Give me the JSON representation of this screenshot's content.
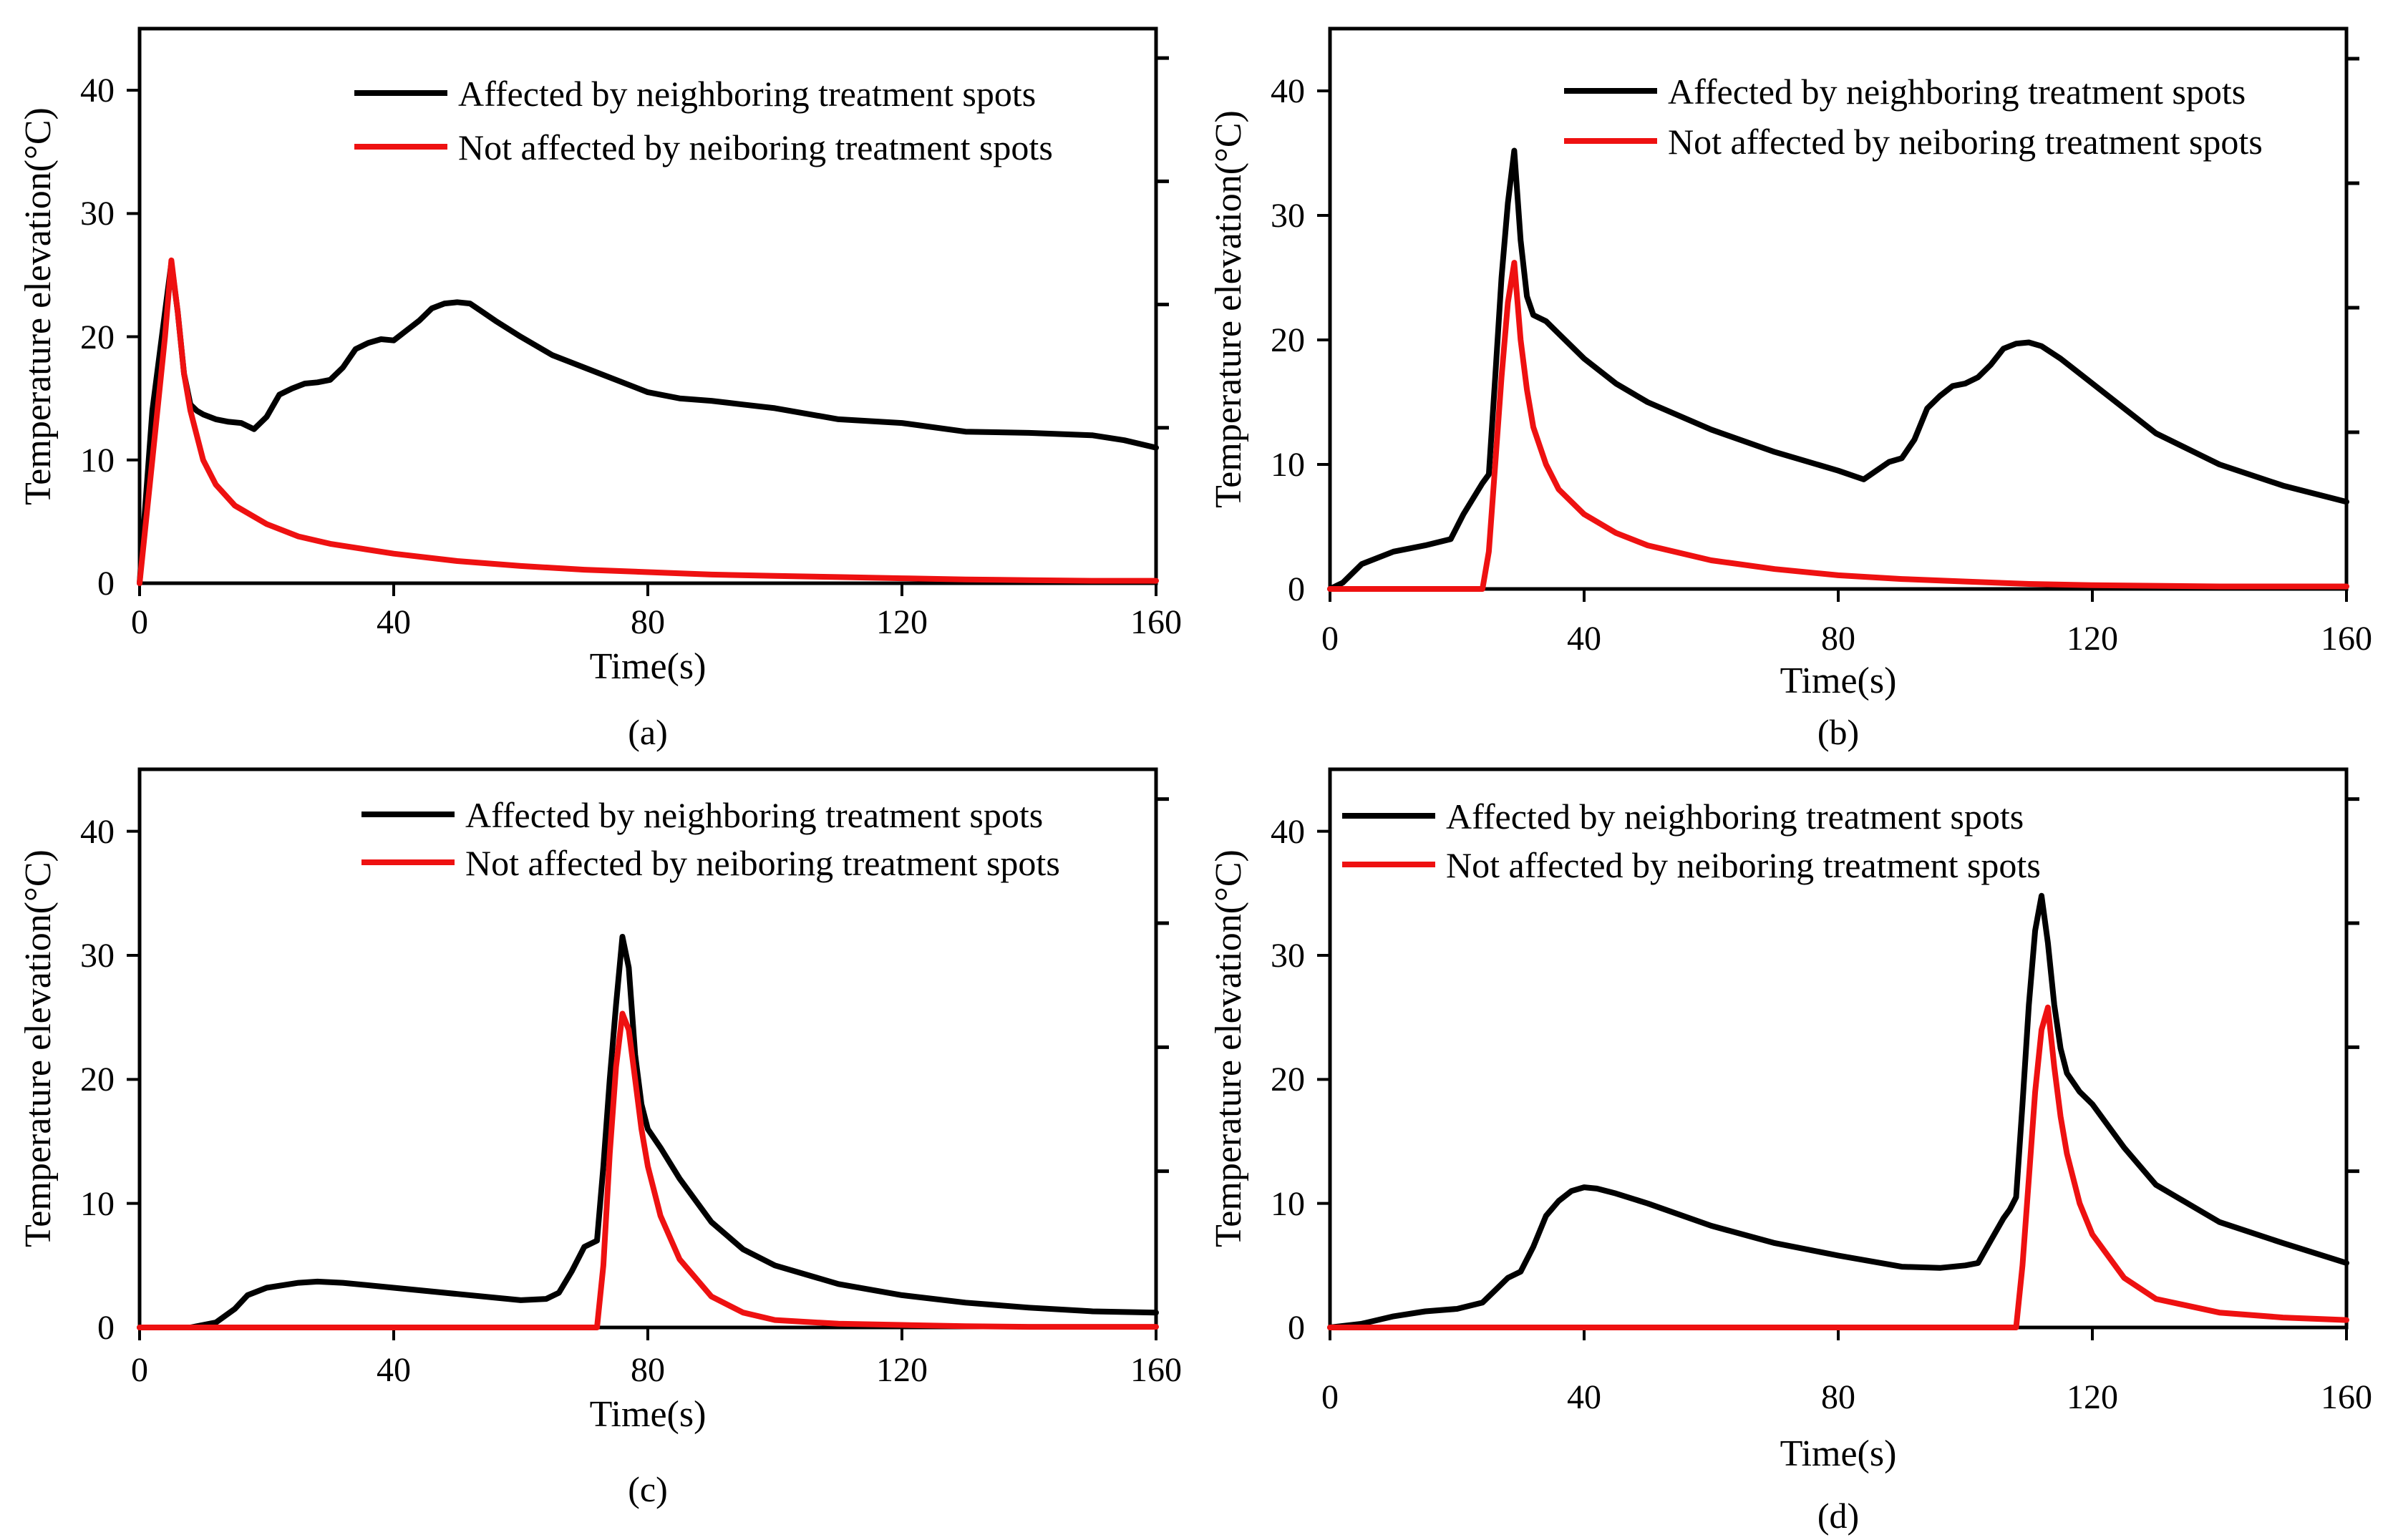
{
  "figure": {
    "legend": {
      "affected": "Affected by neighboring treatment spots",
      "not_affected": "Not affected by neiboring treatment spots"
    },
    "colors": {
      "affected": "#000000",
      "not_affected": "#ee1111"
    }
  },
  "chart_data": [
    {
      "type": "line",
      "panel_label": "(a)",
      "xlabel": "Time(s)",
      "ylabel": "Temperature elevation(°C)",
      "xlim": [
        0,
        160
      ],
      "ylim": [
        0,
        45
      ],
      "xticks": [
        0,
        40,
        80,
        120,
        160
      ],
      "yticks": [
        0,
        10,
        20,
        30,
        40
      ],
      "series": [
        {
          "name": "Affected by neighboring treatment spots",
          "x": [
            0,
            2,
            4,
            5,
            6,
            7,
            8,
            9,
            10,
            12,
            14,
            16,
            18,
            20,
            22,
            24,
            26,
            28,
            30,
            32,
            34,
            36,
            38,
            40,
            42,
            44,
            46,
            48,
            50,
            52,
            54,
            56,
            60,
            65,
            70,
            80,
            85,
            90,
            95,
            100,
            110,
            120,
            130,
            140,
            150,
            155,
            160
          ],
          "y": [
            0,
            14,
            22,
            26,
            22,
            17,
            14.5,
            14,
            13.7,
            13.3,
            13.1,
            13,
            12.5,
            13.5,
            15.3,
            15.8,
            16.2,
            16.3,
            16.5,
            17.5,
            19,
            19.5,
            19.8,
            19.7,
            20.5,
            21.3,
            22.3,
            22.7,
            22.8,
            22.7,
            22,
            21.3,
            20,
            18.5,
            17.5,
            15.5,
            15,
            14.8,
            14.5,
            14.2,
            13.3,
            13,
            12.3,
            12.2,
            12,
            11.6,
            11
          ]
        },
        {
          "name": "Not affected by neiboring treatment spots",
          "x": [
            0,
            2,
            4,
            5,
            6,
            7,
            8,
            10,
            12,
            15,
            20,
            25,
            30,
            40,
            50,
            60,
            70,
            80,
            90,
            100,
            110,
            120,
            130,
            140,
            150,
            160
          ],
          "y": [
            0,
            10,
            20,
            26.2,
            22,
            17,
            14,
            10,
            8,
            6.3,
            4.8,
            3.8,
            3.2,
            2.4,
            1.8,
            1.4,
            1.1,
            0.9,
            0.7,
            0.6,
            0.5,
            0.4,
            0.3,
            0.25,
            0.2,
            0.2
          ]
        }
      ]
    },
    {
      "type": "line",
      "panel_label": "(b)",
      "xlabel": "Time(s)",
      "ylabel": "Temperature elevation(°C)",
      "xlim": [
        0,
        160
      ],
      "ylim": [
        0,
        45
      ],
      "xticks": [
        0,
        40,
        80,
        120,
        160
      ],
      "yticks": [
        0,
        10,
        20,
        30,
        40
      ],
      "series": [
        {
          "name": "Affected by neighboring treatment spots",
          "x": [
            0,
            2,
            5,
            10,
            15,
            19,
            21,
            24,
            25,
            26,
            27,
            28,
            29,
            30,
            31,
            32,
            34,
            36,
            40,
            45,
            50,
            60,
            70,
            80,
            84,
            86,
            88,
            90,
            92,
            94,
            96,
            98,
            100,
            102,
            104,
            106,
            108,
            110,
            112,
            115,
            120,
            130,
            140,
            150,
            160
          ],
          "y": [
            0,
            0.5,
            2,
            3,
            3.5,
            4,
            6,
            8.5,
            9.2,
            17,
            25,
            31,
            35.2,
            28,
            23.5,
            22,
            21.5,
            20.5,
            18.5,
            16.5,
            15,
            12.8,
            11,
            9.5,
            8.8,
            9.5,
            10.2,
            10.5,
            12,
            14.5,
            15.5,
            16.3,
            16.5,
            17,
            18,
            19.3,
            19.7,
            19.8,
            19.5,
            18.5,
            16.5,
            12.5,
            10,
            8.3,
            7
          ]
        },
        {
          "name": "Not affected by neiboring treatment spots",
          "x": [
            0,
            24,
            25,
            26,
            27,
            28,
            29,
            30,
            31,
            32,
            34,
            36,
            40,
            45,
            50,
            60,
            70,
            80,
            90,
            100,
            110,
            120,
            130,
            140,
            150,
            160
          ],
          "y": [
            0,
            0,
            3,
            10,
            17,
            23,
            26.2,
            20,
            16,
            13,
            10,
            8,
            6,
            4.5,
            3.5,
            2.3,
            1.6,
            1.1,
            0.8,
            0.6,
            0.4,
            0.3,
            0.25,
            0.2,
            0.2,
            0.2
          ]
        }
      ]
    },
    {
      "type": "line",
      "panel_label": "(c)",
      "xlabel": "Time(s)",
      "ylabel": "Temperature elevation(°C)",
      "xlim": [
        0,
        160
      ],
      "ylim": [
        0,
        45
      ],
      "xticks": [
        0,
        40,
        80,
        120,
        160
      ],
      "yticks": [
        0,
        10,
        20,
        30,
        40
      ],
      "series": [
        {
          "name": "Affected by neighboring treatment spots",
          "x": [
            0,
            8,
            12,
            15,
            17,
            20,
            25,
            28,
            32,
            40,
            50,
            60,
            64,
            66,
            68,
            70,
            72,
            73,
            74,
            75,
            76,
            77,
            78,
            79,
            80,
            82,
            85,
            90,
            95,
            100,
            110,
            120,
            130,
            140,
            150,
            160
          ],
          "y": [
            0,
            0,
            0.4,
            1.5,
            2.6,
            3.2,
            3.6,
            3.7,
            3.6,
            3.2,
            2.7,
            2.2,
            2.3,
            2.8,
            4.5,
            6.5,
            7,
            13,
            20,
            26,
            31.5,
            29,
            22,
            18,
            16,
            14.5,
            12,
            8.5,
            6.3,
            5,
            3.5,
            2.6,
            2,
            1.6,
            1.3,
            1.2
          ]
        },
        {
          "name": "Not affected by neiboring treatment spots",
          "x": [
            0,
            72,
            73,
            74,
            75,
            76,
            77,
            78,
            79,
            80,
            82,
            85,
            90,
            95,
            100,
            110,
            120,
            130,
            140,
            150,
            160
          ],
          "y": [
            0,
            0,
            5,
            14,
            21,
            25.3,
            24,
            20,
            16,
            13,
            9,
            5.5,
            2.5,
            1.2,
            0.6,
            0.3,
            0.2,
            0.1,
            0.05,
            0.05,
            0.05
          ]
        }
      ]
    },
    {
      "type": "line",
      "panel_label": "(d)",
      "xlabel": "Time(s)",
      "ylabel": "Temperature elevation(°C)",
      "xlim": [
        0,
        160
      ],
      "ylim": [
        0,
        45
      ],
      "xticks": [
        0,
        40,
        80,
        120,
        160
      ],
      "yticks": [
        0,
        10,
        20,
        30,
        40
      ],
      "series": [
        {
          "name": "Affected by neighboring treatment spots",
          "x": [
            0,
            5,
            10,
            15,
            20,
            24,
            26,
            28,
            30,
            32,
            34,
            36,
            38,
            40,
            42,
            45,
            50,
            60,
            70,
            80,
            90,
            96,
            100,
            102,
            104,
            106,
            107,
            108,
            109,
            110,
            111,
            112,
            113,
            114,
            115,
            116,
            118,
            120,
            125,
            130,
            140,
            150,
            160
          ],
          "y": [
            0,
            0.3,
            0.9,
            1.3,
            1.5,
            2,
            3,
            4,
            4.5,
            6.5,
            9,
            10.2,
            11,
            11.3,
            11.2,
            10.8,
            10,
            8.2,
            6.8,
            5.8,
            4.9,
            4.8,
            5,
            5.2,
            7,
            8.8,
            9.5,
            10.5,
            18,
            26,
            32,
            34.8,
            31,
            26,
            22.5,
            20.5,
            19,
            18,
            14.5,
            11.5,
            8.5,
            6.8,
            5.2
          ]
        },
        {
          "name": "Not affected by neiboring treatment spots",
          "x": [
            0,
            108,
            109,
            110,
            111,
            112,
            113,
            114,
            115,
            116,
            118,
            120,
            125,
            130,
            140,
            150,
            160
          ],
          "y": [
            0,
            0,
            5,
            12,
            19,
            24,
            25.8,
            21,
            17,
            14,
            10,
            7.5,
            4,
            2.3,
            1.2,
            0.8,
            0.6
          ]
        }
      ]
    }
  ]
}
